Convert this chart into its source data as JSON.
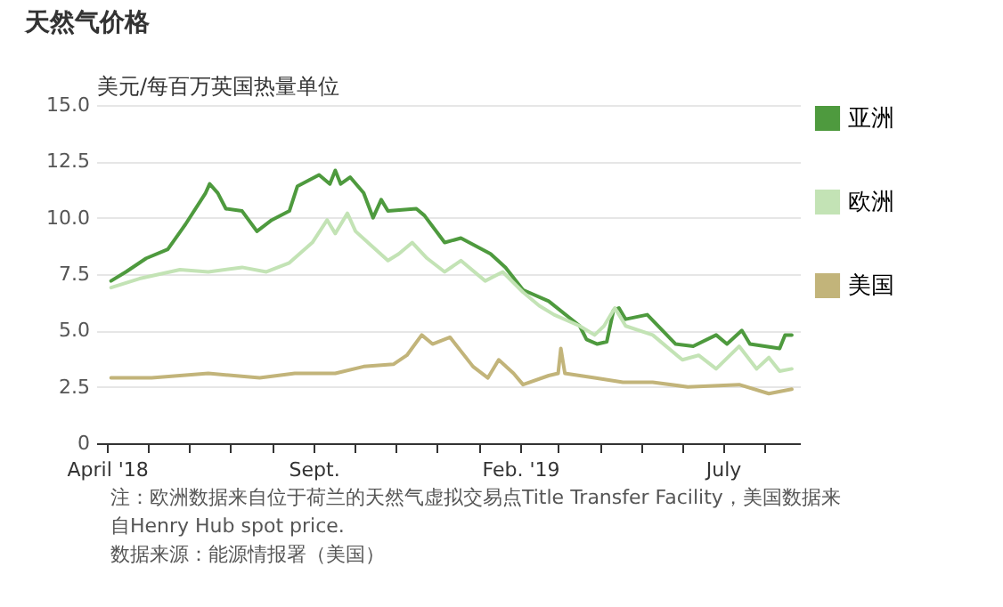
{
  "chart_data": {
    "type": "line",
    "title": "天然气价格",
    "ylabel": "美元/每百万英国热量单位",
    "annotations": [
      "注：欧洲数据来自位于荷兰的天然气虚拟交易点Title Transfer Facility，美国数据来自Henry Hub spot price.",
      "数据来源：能源情报署（美国）"
    ],
    "xlim": [
      "2018-03-24",
      "2019-08-27"
    ],
    "xticks": [
      {
        "value": "2018-04-01",
        "label": "April '18"
      },
      {
        "value": "2018-05-01",
        "label": null
      },
      {
        "value": "2018-06-01",
        "label": null
      },
      {
        "value": "2018-07-01",
        "label": null
      },
      {
        "value": "2018-08-01",
        "label": null
      },
      {
        "value": "2018-09-01",
        "label": "Sept."
      },
      {
        "value": "2018-10-01",
        "label": null
      },
      {
        "value": "2018-11-01",
        "label": null
      },
      {
        "value": "2018-12-01",
        "label": null
      },
      {
        "value": "2019-01-01",
        "label": null
      },
      {
        "value": "2019-02-01",
        "label": "Feb. '19"
      },
      {
        "value": "2019-03-01",
        "label": null
      },
      {
        "value": "2019-04-01",
        "label": null
      },
      {
        "value": "2019-05-01",
        "label": null
      },
      {
        "value": "2019-06-01",
        "label": null
      },
      {
        "value": "2019-07-01",
        "label": "July"
      },
      {
        "value": "2019-08-01",
        "label": null
      }
    ],
    "ylim": [
      0,
      15
    ],
    "yticks": [
      0,
      2.5,
      {
        "value": 5,
        "label": "5.0"
      },
      {
        "value": 7.5,
        "label": "7.5"
      },
      {
        "value": 10,
        "label": "10.0"
      },
      {
        "value": 12.5,
        "label": "12.5"
      },
      {
        "value": 15,
        "label": "15.0"
      }
    ],
    "grid": "y",
    "legend": "right",
    "series": [
      {
        "name": "亚洲",
        "color": "#4e9a3e",
        "x": [
          "2018-04-04",
          "2018-04-15",
          "2018-04-30",
          "2018-05-16",
          "2018-05-29",
          "2018-06-13",
          "2018-06-16",
          "2018-06-22",
          "2018-06-28",
          "2018-07-10",
          "2018-07-21",
          "2018-08-01",
          "2018-08-14",
          "2018-08-20",
          "2018-09-05",
          "2018-09-13",
          "2018-09-17",
          "2018-09-21",
          "2018-09-28",
          "2018-10-08",
          "2018-10-15",
          "2018-10-21",
          "2018-10-26",
          "2018-11-16",
          "2018-11-22",
          "2018-12-07",
          "2018-12-19",
          "2019-01-10",
          "2019-01-21",
          "2019-02-03",
          "2019-02-22",
          "2019-03-17",
          "2019-03-22",
          "2019-03-30",
          "2019-04-06",
          "2019-04-11",
          "2019-04-15",
          "2019-04-20",
          "2019-05-06",
          "2019-05-27",
          "2019-06-09",
          "2019-06-26",
          "2019-07-04",
          "2019-07-15",
          "2019-07-21",
          "2019-08-12",
          "2019-08-16",
          "2019-08-21"
        ],
        "values": [
          7.2,
          7.6,
          8.2,
          8.6,
          9.7,
          11.1,
          11.5,
          11.1,
          10.4,
          10.3,
          9.4,
          9.9,
          10.3,
          11.4,
          11.9,
          11.5,
          12.1,
          11.5,
          11.8,
          11.1,
          10.0,
          10.8,
          10.3,
          10.4,
          10.1,
          8.9,
          9.1,
          8.4,
          7.8,
          6.8,
          6.3,
          5.2,
          4.6,
          4.4,
          4.5,
          5.9,
          6.0,
          5.5,
          5.7,
          4.4,
          4.3,
          4.8,
          4.4,
          5.0,
          4.4,
          4.2,
          4.8,
          4.8
        ]
      },
      {
        "name": "欧洲",
        "color": "#c3e3b5",
        "x": [
          "2018-04-04",
          "2018-04-25",
          "2018-05-25",
          "2018-06-15",
          "2018-07-10",
          "2018-07-28",
          "2018-08-14",
          "2018-08-31",
          "2018-09-11",
          "2018-09-17",
          "2018-09-26",
          "2018-10-02",
          "2018-10-13",
          "2018-10-26",
          "2018-11-03",
          "2018-11-13",
          "2018-11-24",
          "2018-12-07",
          "2018-12-19",
          "2019-01-06",
          "2019-01-19",
          "2019-02-03",
          "2019-02-15",
          "2019-02-26",
          "2019-03-17",
          "2019-03-28",
          "2019-04-04",
          "2019-04-12",
          "2019-04-20",
          "2019-05-10",
          "2019-06-01",
          "2019-06-13",
          "2019-06-26",
          "2019-07-13",
          "2019-07-26",
          "2019-08-04",
          "2019-08-12",
          "2019-08-21"
        ],
        "values": [
          6.9,
          7.3,
          7.7,
          7.6,
          7.8,
          7.6,
          8.0,
          8.9,
          9.9,
          9.3,
          10.2,
          9.4,
          8.8,
          8.1,
          8.4,
          8.9,
          8.2,
          7.6,
          8.1,
          7.2,
          7.6,
          6.7,
          6.1,
          5.7,
          5.2,
          4.8,
          5.2,
          6.0,
          5.2,
          4.8,
          3.7,
          3.9,
          3.3,
          4.3,
          3.3,
          3.8,
          3.2,
          3.3
        ]
      },
      {
        "name": "美国",
        "color": "#c2b47a",
        "x": [
          "2018-04-04",
          "2018-05-04",
          "2018-06-15",
          "2018-07-23",
          "2018-08-18",
          "2018-09-17",
          "2018-10-08",
          "2018-10-30",
          "2018-11-09",
          "2018-11-20",
          "2018-11-28",
          "2018-12-11",
          "2018-12-28",
          "2019-01-08",
          "2019-01-16",
          "2019-01-27",
          "2019-02-03",
          "2019-02-22",
          "2019-03-01",
          "2019-03-03",
          "2019-03-06",
          "2019-03-28",
          "2019-04-18",
          "2019-05-10",
          "2019-06-05",
          "2019-07-13",
          "2019-08-04",
          "2019-08-21"
        ],
        "values": [
          2.9,
          2.9,
          3.1,
          2.9,
          3.1,
          3.1,
          3.4,
          3.5,
          3.9,
          4.8,
          4.4,
          4.7,
          3.4,
          2.9,
          3.7,
          3.1,
          2.6,
          3.0,
          3.1,
          4.2,
          3.1,
          2.9,
          2.7,
          2.7,
          2.5,
          2.6,
          2.2,
          2.4
        ]
      }
    ]
  }
}
